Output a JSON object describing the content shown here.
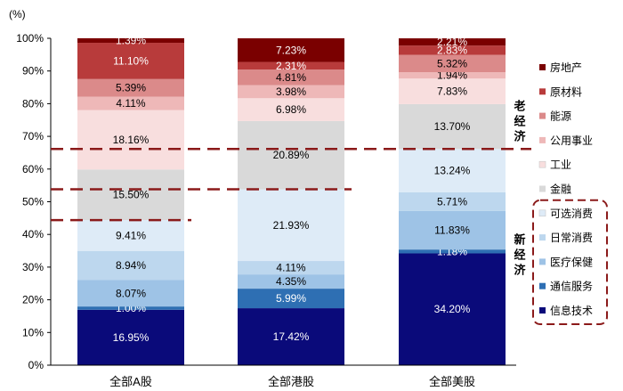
{
  "chart_data": {
    "type": "bar",
    "stacked": true,
    "ylabel": "(%)",
    "ylim": [
      0,
      100
    ],
    "yticks": [
      "0%",
      "10%",
      "20%",
      "30%",
      "40%",
      "50%",
      "60%",
      "70%",
      "80%",
      "90%",
      "100%"
    ],
    "categories": [
      "全部A股",
      "全部港股",
      "全部美股"
    ],
    "series": [
      {
        "name": "信息技术",
        "color": "#0a0a7a",
        "values": [
          16.95,
          17.42,
          34.2
        ],
        "labels": [
          "16.95%",
          "17.42%",
          "34.20%"
        ]
      },
      {
        "name": "通信服务",
        "color": "#2e6fb3",
        "values": [
          1.0,
          5.99,
          1.18
        ],
        "labels": [
          "1.00%",
          "5.99%",
          "1.18%"
        ]
      },
      {
        "name": "医疗保健",
        "color": "#9ec3e6",
        "values": [
          8.07,
          4.35,
          11.83
        ],
        "labels": [
          "8.07%",
          "4.35%",
          "11.83%"
        ]
      },
      {
        "name": "日常消费",
        "color": "#bdd7ee",
        "values": [
          8.94,
          4.11,
          5.71
        ],
        "labels": [
          "8.94%",
          "4.11%",
          "5.71%"
        ]
      },
      {
        "name": "可选消费",
        "color": "#deebf7",
        "values": [
          9.41,
          21.93,
          13.24
        ],
        "labels": [
          "9.41%",
          "21.93%",
          "13.24%"
        ]
      },
      {
        "name": "金融",
        "color": "#d9d9d9",
        "values": [
          15.5,
          20.89,
          13.7
        ],
        "labels": [
          "15.50%",
          "20.89%",
          "13.70%"
        ]
      },
      {
        "name": "工业",
        "color": "#f8dede",
        "values": [
          18.16,
          6.98,
          7.83
        ],
        "labels": [
          "18.16%",
          "6.98%",
          "7.83%"
        ]
      },
      {
        "name": "公用事业",
        "color": "#eeb8b8",
        "values": [
          4.11,
          3.98,
          1.94
        ],
        "labels": [
          "4.11%",
          "3.98%",
          "1.94%"
        ]
      },
      {
        "name": "能源",
        "color": "#db8a8a",
        "values": [
          5.39,
          4.81,
          5.32
        ],
        "labels": [
          "5.39%",
          "4.81%",
          "5.32%"
        ]
      },
      {
        "name": "原材料",
        "color": "#b83b3b",
        "values": [
          11.1,
          2.31,
          2.83
        ],
        "labels": [
          "11.10%",
          "2.31%",
          "2.83%"
        ]
      },
      {
        "name": "房地产",
        "color": "#7a0000",
        "values": [
          1.39,
          7.23,
          2.21
        ],
        "labels": [
          "1.39%",
          "7.23%",
          "2.21%"
        ]
      }
    ],
    "legend": {
      "position": "right",
      "order": [
        "房地产",
        "原材料",
        "能源",
        "公用事业",
        "工业",
        "金融",
        "可选消费",
        "日常消费",
        "医疗保健",
        "通信服务",
        "信息技术"
      ]
    },
    "groups": [
      {
        "label": "老经济",
        "members": [
          "房地产",
          "原材料",
          "能源",
          "公用事业",
          "工业",
          "金融"
        ]
      },
      {
        "label": "新经济",
        "members": [
          "可选消费",
          "日常消费",
          "医疗保健",
          "通信服务",
          "信息技术"
        ],
        "boxed": true
      }
    ],
    "divider_color": "#8b1a1a",
    "grid": false
  }
}
